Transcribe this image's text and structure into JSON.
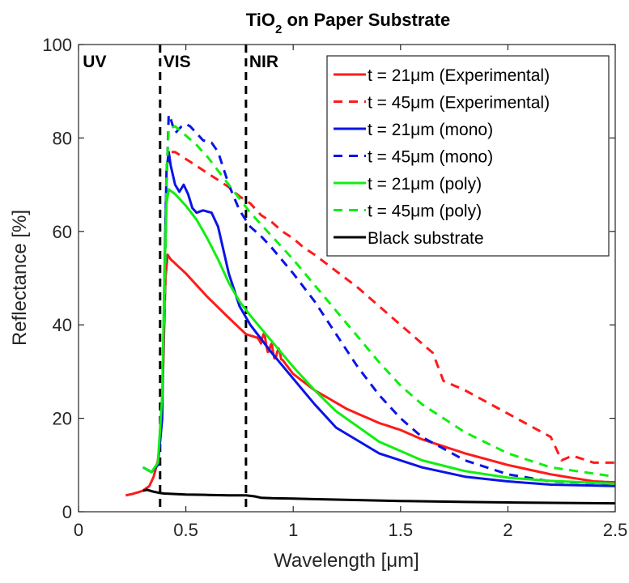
{
  "chart_data": {
    "type": "line",
    "title_main": "TiO",
    "title_sub": "2",
    "title_rest": " on Paper Substrate",
    "xlabel": "Wavelength [μm]",
    "ylabel": "Reflectance [%]",
    "xlim": [
      0,
      2.5
    ],
    "ylim": [
      0,
      100
    ],
    "xticks": [
      0,
      0.5,
      1,
      1.5,
      2,
      2.5
    ],
    "xtick_labels": [
      "0",
      "0.5",
      "1",
      "1.5",
      "2",
      "2.5"
    ],
    "yticks": [
      0,
      20,
      40,
      60,
      80,
      100
    ],
    "ytick_labels": [
      "0",
      "20",
      "40",
      "60",
      "80",
      "100"
    ],
    "grid": false,
    "legend_placement": "top-right",
    "region_labels": [
      {
        "text": "UV",
        "x": 0.02
      },
      {
        "text": "VIS",
        "x": 0.395
      },
      {
        "text": "NIR",
        "x": 0.795
      }
    ],
    "region_boundaries": [
      0.38,
      0.78
    ],
    "series": [
      {
        "name": "t = 21μm (Experimental)",
        "color": "#ff1a1a",
        "dash": "solid",
        "noisy": true,
        "x": [
          0.22,
          0.25,
          0.28,
          0.3,
          0.33,
          0.35,
          0.37,
          0.385,
          0.395,
          0.405,
          0.415,
          0.43,
          0.5,
          0.6,
          0.7,
          0.78,
          0.85,
          0.9,
          0.95,
          1.0,
          1.1,
          1.25,
          1.4,
          1.5,
          1.6,
          1.8,
          2.0,
          2.2,
          2.4,
          2.5
        ],
        "y": [
          3.5,
          3.8,
          4.2,
          4.5,
          5.5,
          7.5,
          11,
          18,
          32,
          50,
          55,
          54,
          51,
          46,
          41.5,
          38,
          37,
          35,
          32.5,
          29.5,
          26,
          22,
          19,
          17.5,
          15.5,
          12.5,
          10,
          8,
          6.5,
          6.3
        ]
      },
      {
        "name": "t = 45μm (Experimental)",
        "color": "#ff1a1a",
        "dash": "dashed",
        "noisy": false,
        "x": [
          0.41,
          0.43,
          0.45,
          0.5,
          0.55,
          0.6,
          0.65,
          0.7,
          0.75,
          0.8,
          0.85,
          0.9,
          0.95,
          1.0,
          1.05,
          1.1,
          1.2,
          1.3,
          1.4,
          1.5,
          1.6,
          1.65,
          1.7,
          1.75,
          1.8,
          1.9,
          2.0,
          2.1,
          2.2,
          2.25,
          2.3,
          2.4,
          2.5
        ],
        "y": [
          74,
          77,
          77,
          75.5,
          74,
          72.5,
          71,
          69.5,
          67.5,
          66,
          63.5,
          62,
          60,
          58.5,
          56.5,
          55,
          51.5,
          48,
          44,
          40,
          36,
          34,
          28,
          27,
          26,
          23.5,
          21,
          18.5,
          16,
          11,
          12,
          10.5,
          10.5
        ]
      },
      {
        "name": "t = 21μm (mono)",
        "color": "#0a14e6",
        "dash": "solid",
        "noisy": false,
        "x": [
          0.3,
          0.34,
          0.37,
          0.39,
          0.4,
          0.41,
          0.42,
          0.43,
          0.45,
          0.47,
          0.49,
          0.51,
          0.53,
          0.55,
          0.58,
          0.62,
          0.65,
          0.7,
          0.75,
          0.8,
          0.9,
          1.0,
          1.1,
          1.2,
          1.4,
          1.6,
          1.8,
          2.0,
          2.2,
          2.5
        ],
        "y": [
          9.5,
          8.5,
          10,
          20,
          50,
          73,
          77,
          74,
          70,
          68.5,
          70,
          68,
          65,
          64,
          64.5,
          64,
          61,
          51,
          44,
          40,
          34,
          28.5,
          23,
          18,
          12.5,
          9.5,
          7.5,
          6.5,
          5.8,
          5.5
        ]
      },
      {
        "name": "t = 45μm (mono)",
        "color": "#0a14e6",
        "dash": "dashed",
        "noisy": false,
        "x": [
          0.4,
          0.41,
          0.42,
          0.43,
          0.45,
          0.48,
          0.5,
          0.52,
          0.55,
          0.58,
          0.62,
          0.65,
          0.7,
          0.75,
          0.8,
          0.85,
          0.9,
          1.0,
          1.1,
          1.2,
          1.3,
          1.4,
          1.5,
          1.6,
          1.8,
          2.0,
          2.2,
          2.5
        ],
        "y": [
          40,
          70,
          85,
          84,
          81,
          82.5,
          83,
          82.5,
          81,
          79.5,
          79,
          77,
          70,
          64.5,
          61,
          59,
          56.5,
          51,
          45,
          38,
          31,
          25,
          20,
          16,
          11,
          8,
          6.5,
          6
        ]
      },
      {
        "name": "t = 21μm (poly)",
        "color": "#11ee11",
        "dash": "solid",
        "noisy": false,
        "x": [
          0.3,
          0.34,
          0.37,
          0.39,
          0.4,
          0.41,
          0.42,
          0.45,
          0.5,
          0.55,
          0.6,
          0.65,
          0.7,
          0.75,
          0.8,
          0.9,
          1.0,
          1.1,
          1.2,
          1.4,
          1.6,
          1.8,
          2.0,
          2.2,
          2.5
        ],
        "y": [
          9.5,
          8.5,
          10.5,
          25,
          50,
          66,
          69,
          68,
          65.5,
          62.5,
          58.5,
          54,
          49,
          45,
          42,
          36.5,
          31,
          26,
          21.5,
          15,
          11,
          8.7,
          7.3,
          6.6,
          6
        ]
      },
      {
        "name": "t = 45μm (poly)",
        "color": "#11ee11",
        "dash": "dashed",
        "noisy": false,
        "x": [
          0.4,
          0.41,
          0.42,
          0.45,
          0.5,
          0.55,
          0.6,
          0.65,
          0.7,
          0.75,
          0.8,
          0.85,
          0.9,
          1.0,
          1.1,
          1.2,
          1.3,
          1.4,
          1.5,
          1.6,
          1.8,
          2.0,
          2.2,
          2.5
        ],
        "y": [
          40,
          72,
          82,
          82.5,
          80.5,
          78.5,
          76,
          73,
          70,
          67,
          64,
          61.5,
          59,
          54,
          48.5,
          43,
          37.5,
          32,
          27,
          23,
          17,
          12.5,
          9.5,
          7.5
        ]
      },
      {
        "name": "Black substrate",
        "color": "#000000",
        "dash": "solid",
        "noisy": false,
        "x": [
          0.3,
          0.32,
          0.34,
          0.36,
          0.38,
          0.4,
          0.5,
          0.6,
          0.7,
          0.78,
          0.8,
          0.82,
          0.85,
          0.9,
          1.0,
          1.2,
          1.5,
          1.8,
          2.0,
          2.2,
          2.5
        ],
        "y": [
          4.5,
          4.7,
          4.4,
          4.2,
          4.0,
          3.9,
          3.7,
          3.6,
          3.5,
          3.5,
          3.4,
          3.3,
          3.0,
          2.9,
          2.8,
          2.6,
          2.3,
          2.1,
          2.0,
          1.9,
          1.8
        ]
      }
    ]
  }
}
